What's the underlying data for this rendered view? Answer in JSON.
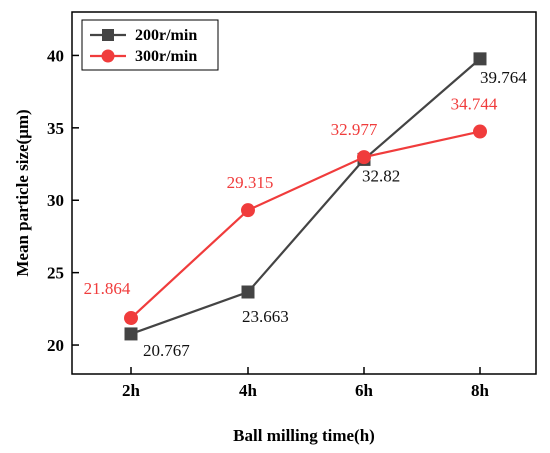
{
  "chart_data": {
    "type": "line",
    "categories": [
      "2h",
      "4h",
      "6h",
      "8h"
    ],
    "xlabel": "Ball milling time(h)",
    "ylabel": "Mean particle size(μm)",
    "ylim": [
      18,
      43
    ],
    "yticks": [
      20,
      25,
      30,
      35,
      40
    ],
    "grid": false,
    "legend_position": "top-left",
    "series": [
      {
        "name": "200r/min",
        "values": [
          20.767,
          23.663,
          32.82,
          39.764
        ],
        "labels": [
          "20.767",
          "23.663",
          "32.82",
          "39.764"
        ],
        "color": "#444444",
        "marker": "square"
      },
      {
        "name": "300r/min",
        "values": [
          21.864,
          29.315,
          32.977,
          34.744
        ],
        "labels": [
          "21.864",
          "29.315",
          "32.977",
          "34.744"
        ],
        "color": "#f03c3c",
        "marker": "circle"
      }
    ]
  }
}
